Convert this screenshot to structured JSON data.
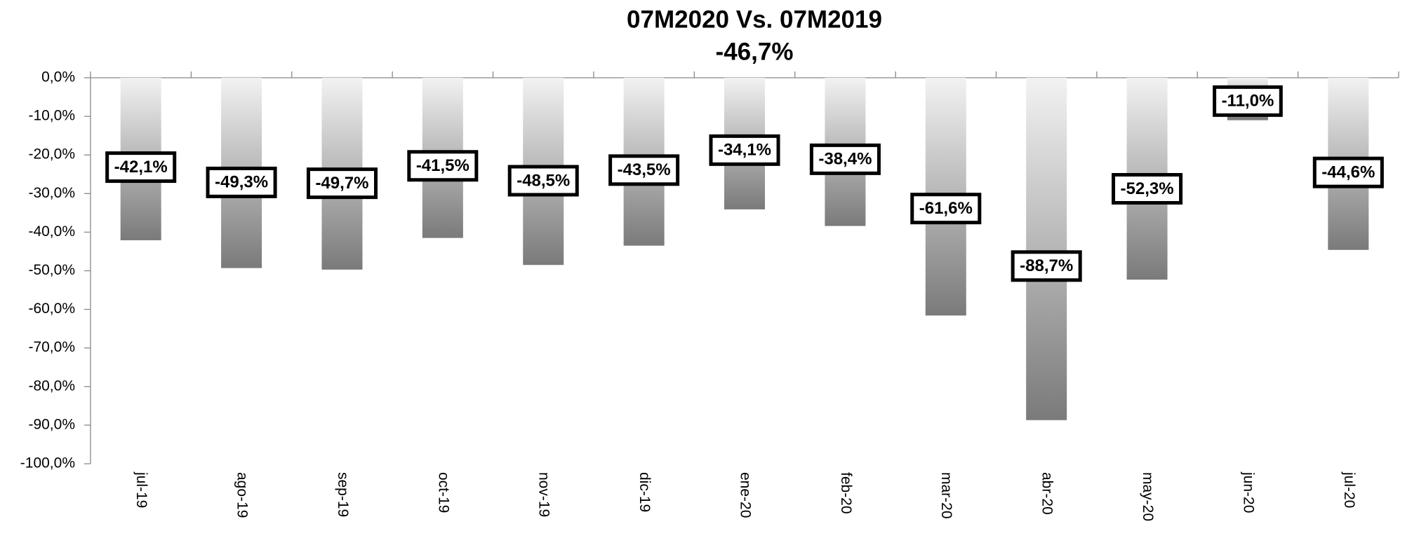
{
  "chart_data": {
    "type": "bar",
    "title": "07M2020 Vs. 07M2019",
    "subtitle": "-46,7%",
    "categories": [
      "jul-19",
      "ago-19",
      "sep-19",
      "oct-19",
      "nov-19",
      "dic-19",
      "ene-20",
      "feb-20",
      "mar-20",
      "abr-20",
      "may-20",
      "jun-20",
      "jul-20"
    ],
    "values": [
      -42.1,
      -49.3,
      -49.7,
      -41.5,
      -48.5,
      -43.5,
      -34.1,
      -38.4,
      -61.6,
      -88.7,
      -52.3,
      -11.0,
      -44.6
    ],
    "value_labels": [
      "-42,1%",
      "-49,3%",
      "-49,7%",
      "-41,5%",
      "-48,5%",
      "-43,5%",
      "-34,1%",
      "-38,4%",
      "-61,6%",
      "-88,7%",
      "-52,3%",
      "-11,0%",
      "-44,6%"
    ],
    "color": "#7a7a7a",
    "ylim": [
      -100,
      0
    ],
    "yticks": [
      {
        "value": 0,
        "label": "0,0%"
      },
      {
        "value": -10,
        "label": "-10,0%"
      },
      {
        "value": -20,
        "label": "-20,0%"
      },
      {
        "value": -30,
        "label": "-30,0%"
      },
      {
        "value": -40,
        "label": "-40,0%"
      },
      {
        "value": -50,
        "label": "-50,0%"
      },
      {
        "value": -60,
        "label": "-60,0%"
      },
      {
        "value": -70,
        "label": "-70,0%"
      },
      {
        "value": -80,
        "label": "-80,0%"
      },
      {
        "value": -90,
        "label": "-90,0%"
      },
      {
        "value": -100,
        "label": "-100,0%"
      }
    ]
  }
}
